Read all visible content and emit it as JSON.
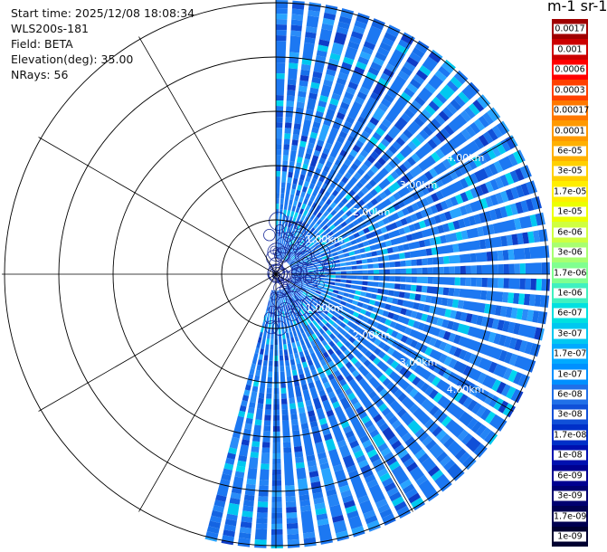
{
  "header": {
    "start_time": "Start time: 2025/12/08 18:08:34",
    "instrument": "WLS200s-181",
    "field": "Field: BETA",
    "elevation": "Elevation(deg): 35.00",
    "nrays": "NRays: 56"
  },
  "colorbar": {
    "title": "m-1 sr-1",
    "labels": [
      "0.0017",
      "0.001",
      "0.0006",
      "0.0003",
      "0.00017",
      "0.0001",
      "6e-05",
      "3e-05",
      "1.7e-05",
      "1e-05",
      "6e-06",
      "3e-06",
      "1.7e-06",
      "1e-06",
      "6e-07",
      "3e-07",
      "1.7e-07",
      "1e-07",
      "6e-08",
      "3e-08",
      "1.7e-08",
      "1e-08",
      "6e-09",
      "3e-09",
      "1.7e-09",
      "1e-09"
    ],
    "colors": [
      "#a00000",
      "#cc0000",
      "#ff0000",
      "#ff4000",
      "#ff7700",
      "#ff9900",
      "#ffb000",
      "#ffd000",
      "#ffee00",
      "#ecff00",
      "#cfff40",
      "#a8ff70",
      "#80ff90",
      "#40f0c0",
      "#00e0e0",
      "#00c8f0",
      "#00aaff",
      "#0090ff",
      "#2070e8",
      "#1050d8",
      "#0030c8",
      "#0010b0",
      "#000090",
      "#000070",
      "#000050",
      "#000030"
    ]
  },
  "chart_data": {
    "type": "ppi_polar_scan",
    "field": "BETA",
    "units": "m-1 sr-1",
    "elevation_deg": 35.0,
    "n_rays": 56,
    "azimuth_coverage_deg": [
      0,
      196
    ],
    "range_ring_labels": [
      "1.00km",
      "2.00km",
      "3.00km",
      "4.00km"
    ],
    "typical_value_range": [
      "1e-08",
      "3e-08"
    ],
    "colorbar_scale": "log"
  }
}
